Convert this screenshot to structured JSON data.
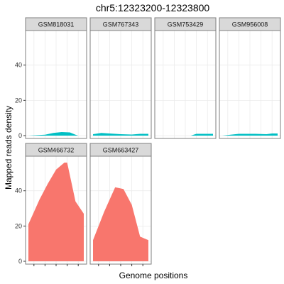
{
  "chart_data": {
    "type": "area",
    "title": "chr5:12323200-12323800",
    "xlabel": "Genome positions",
    "ylabel": "Mapped reads density",
    "ylim": [
      0,
      58
    ],
    "yticks": [
      0,
      20,
      40
    ],
    "xlim": [
      0,
      1
    ],
    "grid": true,
    "legend": "none",
    "colors": {
      "group_a": "#00BFC4",
      "group_b": "#F8766D",
      "panel_border": "#7f7f7f",
      "strip_fill": "#d9d9d9",
      "grid": "#ebebeb"
    },
    "panels": [
      {
        "name": "GSM818031",
        "color": "#00BFC4",
        "points": [
          [
            0.0,
            0.0
          ],
          [
            0.3,
            0.5
          ],
          [
            0.45,
            1.5
          ],
          [
            0.6,
            2.0
          ],
          [
            0.75,
            1.8
          ],
          [
            0.85,
            0.5
          ],
          [
            0.9,
            0.0
          ]
        ]
      },
      {
        "name": "GSM767343",
        "color": "#00BFC4",
        "points": [
          [
            0.0,
            0.8
          ],
          [
            0.15,
            1.5
          ],
          [
            0.3,
            1.2
          ],
          [
            0.5,
            0.8
          ],
          [
            0.7,
            0.6
          ],
          [
            0.85,
            1.0
          ],
          [
            1.0,
            1.0
          ]
        ]
      },
      {
        "name": "GSM753429",
        "color": "#00BFC4",
        "points": [
          [
            0.6,
            0.0
          ],
          [
            0.7,
            1.0
          ],
          [
            1.0,
            1.0
          ]
        ]
      },
      {
        "name": "GSM956008",
        "color": "#00BFC4",
        "points": [
          [
            0.0,
            0.0
          ],
          [
            0.15,
            0.5
          ],
          [
            0.3,
            1.0
          ],
          [
            0.6,
            1.0
          ],
          [
            0.8,
            0.8
          ],
          [
            0.9,
            1.2
          ],
          [
            1.0,
            1.2
          ]
        ]
      },
      {
        "name": "GSM466732",
        "color": "#F8766D",
        "points": [
          [
            0.0,
            21
          ],
          [
            0.2,
            35
          ],
          [
            0.35,
            44
          ],
          [
            0.5,
            52
          ],
          [
            0.65,
            56
          ],
          [
            0.7,
            56
          ],
          [
            0.85,
            34
          ],
          [
            1.0,
            27
          ]
        ]
      },
      {
        "name": "GSM663427",
        "color": "#F8766D",
        "points": [
          [
            0.0,
            12
          ],
          [
            0.2,
            28
          ],
          [
            0.4,
            42
          ],
          [
            0.55,
            41
          ],
          [
            0.7,
            32
          ],
          [
            0.85,
            14
          ],
          [
            1.0,
            12
          ]
        ]
      }
    ]
  }
}
